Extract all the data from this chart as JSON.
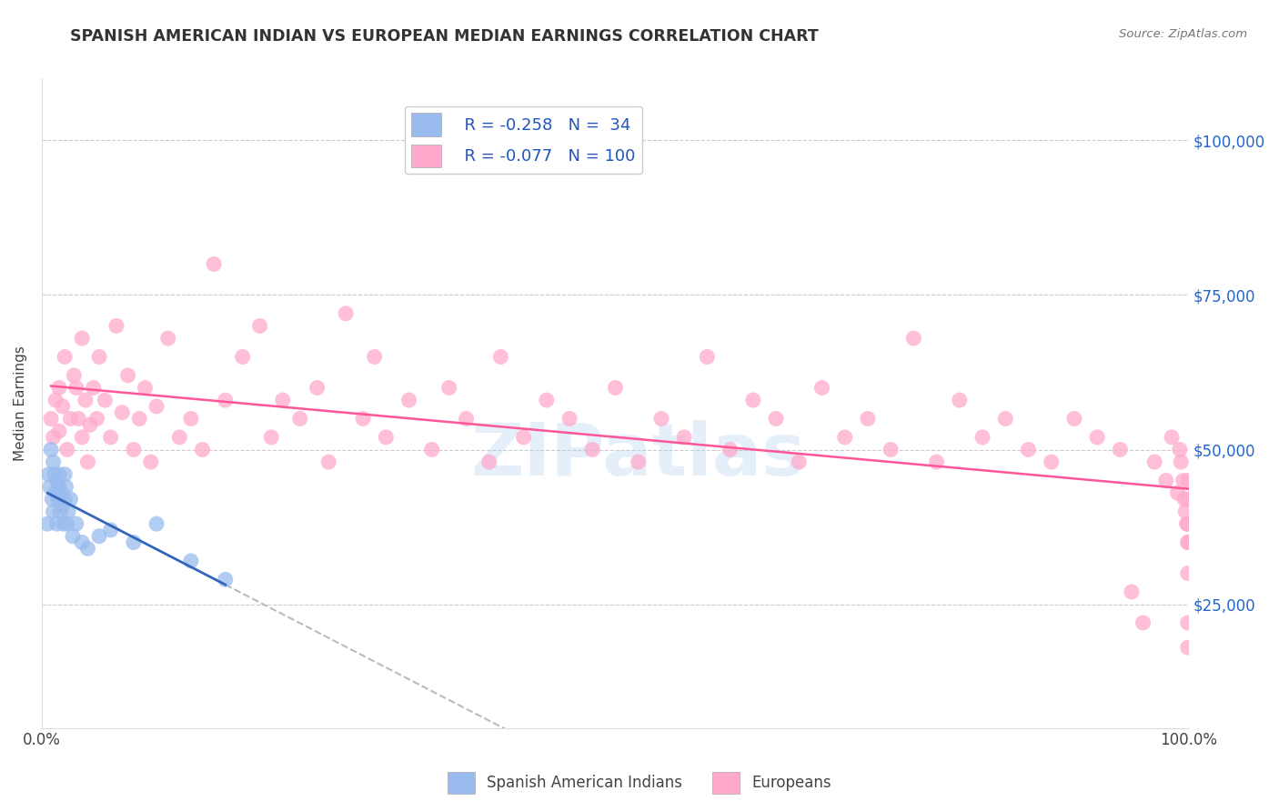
{
  "title": "SPANISH AMERICAN INDIAN VS EUROPEAN MEDIAN EARNINGS CORRELATION CHART",
  "source_text": "Source: ZipAtlas.com",
  "ylabel": "Median Earnings",
  "xlim": [
    0,
    1.0
  ],
  "ylim": [
    5000,
    110000
  ],
  "yticks": [
    25000,
    50000,
    75000,
    100000
  ],
  "ytick_labels": [
    "$25,000",
    "$50,000",
    "$75,000",
    "$100,000"
  ],
  "xtick_labels": [
    "0.0%",
    "100.0%"
  ],
  "legend_r_blue": "-0.258",
  "legend_n_blue": "34",
  "legend_r_pink": "-0.077",
  "legend_n_pink": "100",
  "blue_color": "#99BBEE",
  "pink_color": "#FFAACC",
  "trendline_blue_color": "#3366BB",
  "trendline_pink_color": "#FF5599",
  "dashed_line_color": "#BBBBBB",
  "watermark_color": "#AACCEE",
  "watermark_text": "ZIPatlas",
  "blue_scatter_x": [
    0.005,
    0.006,
    0.007,
    0.008,
    0.009,
    0.01,
    0.01,
    0.011,
    0.012,
    0.013,
    0.013,
    0.014,
    0.015,
    0.015,
    0.016,
    0.017,
    0.018,
    0.019,
    0.02,
    0.02,
    0.021,
    0.022,
    0.023,
    0.025,
    0.027,
    0.03,
    0.035,
    0.04,
    0.05,
    0.06,
    0.08,
    0.1,
    0.13,
    0.16
  ],
  "blue_scatter_y": [
    38000,
    46000,
    44000,
    50000,
    42000,
    48000,
    40000,
    46000,
    43000,
    45000,
    38000,
    42000,
    46000,
    44000,
    40000,
    43000,
    41000,
    38000,
    46000,
    42000,
    44000,
    38000,
    40000,
    42000,
    36000,
    38000,
    35000,
    34000,
    36000,
    37000,
    35000,
    38000,
    32000,
    29000
  ],
  "pink_scatter_x": [
    0.008,
    0.01,
    0.012,
    0.015,
    0.015,
    0.018,
    0.02,
    0.022,
    0.025,
    0.028,
    0.03,
    0.032,
    0.035,
    0.035,
    0.038,
    0.04,
    0.042,
    0.045,
    0.048,
    0.05,
    0.055,
    0.06,
    0.065,
    0.07,
    0.075,
    0.08,
    0.085,
    0.09,
    0.095,
    0.1,
    0.11,
    0.12,
    0.13,
    0.14,
    0.15,
    0.16,
    0.175,
    0.19,
    0.2,
    0.21,
    0.225,
    0.24,
    0.25,
    0.265,
    0.28,
    0.29,
    0.3,
    0.32,
    0.34,
    0.355,
    0.37,
    0.39,
    0.4,
    0.42,
    0.44,
    0.46,
    0.48,
    0.5,
    0.52,
    0.54,
    0.56,
    0.58,
    0.6,
    0.62,
    0.64,
    0.66,
    0.68,
    0.7,
    0.72,
    0.74,
    0.76,
    0.78,
    0.8,
    0.82,
    0.84,
    0.86,
    0.88,
    0.9,
    0.92,
    0.94,
    0.95,
    0.96,
    0.97,
    0.98,
    0.985,
    0.99,
    0.992,
    0.993,
    0.995,
    0.996,
    0.997,
    0.998,
    0.999,
    0.999,
    0.999,
    0.999,
    0.999,
    0.999,
    0.999,
    0.999
  ],
  "pink_scatter_y": [
    55000,
    52000,
    58000,
    60000,
    53000,
    57000,
    65000,
    50000,
    55000,
    62000,
    60000,
    55000,
    52000,
    68000,
    58000,
    48000,
    54000,
    60000,
    55000,
    65000,
    58000,
    52000,
    70000,
    56000,
    62000,
    50000,
    55000,
    60000,
    48000,
    57000,
    68000,
    52000,
    55000,
    50000,
    80000,
    58000,
    65000,
    70000,
    52000,
    58000,
    55000,
    60000,
    48000,
    72000,
    55000,
    65000,
    52000,
    58000,
    50000,
    60000,
    55000,
    48000,
    65000,
    52000,
    58000,
    55000,
    50000,
    60000,
    48000,
    55000,
    52000,
    65000,
    50000,
    58000,
    55000,
    48000,
    60000,
    52000,
    55000,
    50000,
    68000,
    48000,
    58000,
    52000,
    55000,
    50000,
    48000,
    55000,
    52000,
    50000,
    27000,
    22000,
    48000,
    45000,
    52000,
    43000,
    50000,
    48000,
    45000,
    42000,
    40000,
    38000,
    35000,
    30000,
    22000,
    18000,
    45000,
    42000,
    38000,
    35000
  ]
}
